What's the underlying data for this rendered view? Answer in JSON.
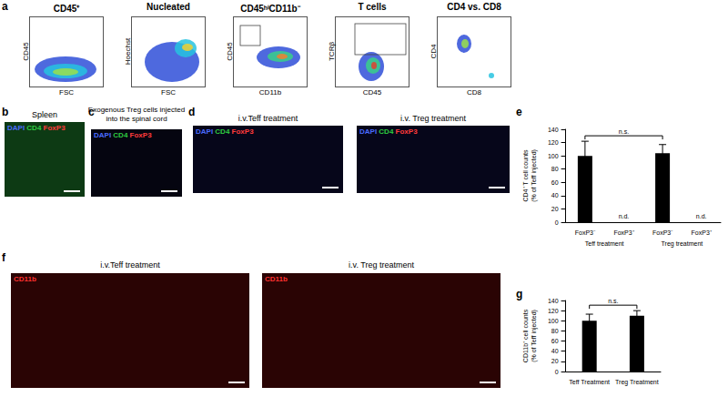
{
  "figure": {
    "panel_letters": [
      "a",
      "b",
      "c",
      "d",
      "e",
      "f",
      "g"
    ],
    "a": {
      "plots": [
        {
          "title": "CD45⁺",
          "x_label": "FSC",
          "y_label": "CD45"
        },
        {
          "title": "Nucleated",
          "x_label": "FSC",
          "y_label": "Hoechst"
        },
        {
          "title": "CD45ʰⁱCD11b⁻",
          "x_label": "CD11b",
          "y_label": "CD45"
        },
        {
          "title": "T cells",
          "x_label": "CD45",
          "y_label": "TCRβ"
        },
        {
          "title": "CD4 vs. CD8",
          "x_label": "CD8",
          "y_label": "CD4"
        }
      ]
    },
    "b": {
      "title": "Spleen",
      "stains": [
        {
          "text": "DAPI",
          "color": "#4a6bff"
        },
        {
          "text": "CD4",
          "color": "#2ecc40"
        },
        {
          "text": "FoxP3",
          "color": "#ff3b3b"
        }
      ]
    },
    "c": {
      "title": "Exogenous Treg cells injected into the spinal cord",
      "stains": [
        {
          "text": "DAPI",
          "color": "#4a6bff"
        },
        {
          "text": "CD4",
          "color": "#2ecc40"
        },
        {
          "text": "FoxP3",
          "color": "#ff3b3b"
        }
      ]
    },
    "d": {
      "images": [
        {
          "title": "i.v.Teff treatment",
          "stains": [
            {
              "text": "DAPI",
              "color": "#4a6bff"
            },
            {
              "text": "CD4",
              "color": "#2ecc40"
            },
            {
              "text": "FoxP3",
              "color": "#ff3b3b"
            }
          ]
        },
        {
          "title": "i.v. Treg treatment",
          "stains": [
            {
              "text": "DAPI",
              "color": "#4a6bff"
            },
            {
              "text": "CD4",
              "color": "#2ecc40"
            },
            {
              "text": "FoxP3",
              "color": "#ff3b3b"
            }
          ]
        }
      ]
    },
    "f": {
      "images": [
        {
          "title": "i.v.Teff treatment",
          "stains": [
            {
              "text": "CD11b",
              "color": "#ff3030"
            }
          ]
        },
        {
          "title": "i.v. Treg treatment",
          "stains": [
            {
              "text": "CD11b",
              "color": "#ff3030"
            }
          ]
        }
      ]
    }
  },
  "chart_data": [
    {
      "type": "bar",
      "categories": [
        "FoxP3⁻",
        "FoxP3⁺",
        "FoxP3⁻",
        "FoxP3⁺"
      ],
      "groups": [
        "Teff treatment",
        "Treg treatment"
      ],
      "values": [
        100,
        null,
        104,
        null
      ],
      "errors": [
        22,
        null,
        13,
        null
      ],
      "value_labels": [
        null,
        "n.d.",
        null,
        "n.d."
      ],
      "color": "#000000",
      "ylabel": "CD4⁺ T cell counts\n(% of Teff injected)",
      "ylim": [
        0,
        140
      ],
      "yticks": [
        0,
        20,
        40,
        60,
        80,
        100,
        120,
        140
      ],
      "annotations": [
        {
          "text": "n.s.",
          "between": [
            0,
            2
          ]
        }
      ],
      "grid": false
    },
    {
      "type": "bar",
      "categories": [
        "Teff Treatment",
        "Treg Treatment"
      ],
      "values": [
        100,
        110
      ],
      "errors": [
        13,
        10
      ],
      "color": "#000000",
      "ylabel": "CD11b⁺ cell counts\n(% of Teff injected)",
      "ylim": [
        0,
        140
      ],
      "yticks": [
        0,
        20,
        40,
        60,
        80,
        100,
        120,
        140
      ],
      "annotations": [
        {
          "text": "n.s.",
          "between": [
            0,
            1
          ]
        }
      ],
      "grid": false
    }
  ]
}
